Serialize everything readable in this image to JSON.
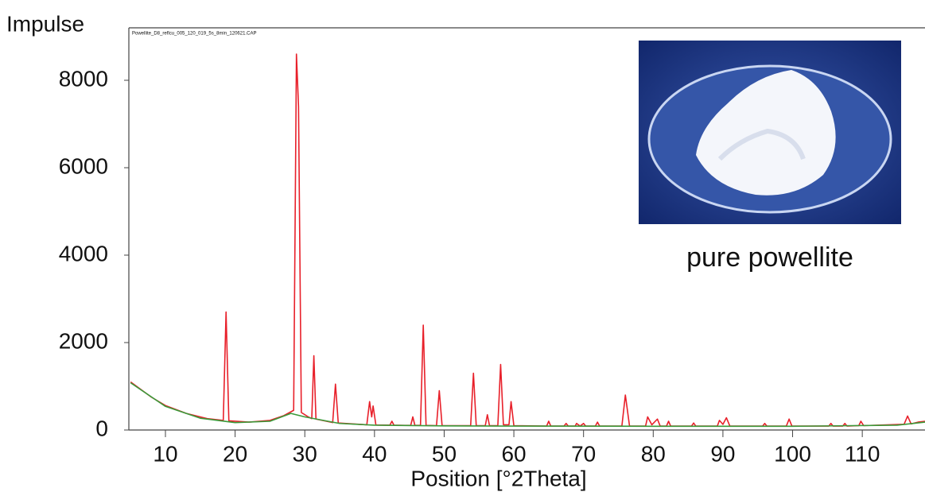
{
  "chart_data": {
    "type": "line",
    "file_label": "Powellite_D8_reflcu_005_120_019_5s_8min_120621.CAP",
    "y_label": "Impulse",
    "x_label": "Position [°2Theta]",
    "annotation": "pure powellite",
    "xlim": [
      4.75,
      119
    ],
    "ylim": [
      0,
      9200
    ],
    "xticks": [
      10,
      20,
      30,
      40,
      50,
      60,
      70,
      80,
      90,
      100,
      110
    ],
    "yticks": [
      0,
      2000,
      4000,
      6000,
      8000
    ],
    "series": [
      {
        "color": "#e8202a",
        "x": [
          5,
          8,
          10,
          13,
          16,
          18.3,
          18.7,
          19.1,
          22,
          25,
          27,
          28.4,
          28.8,
          29.1,
          29.5,
          30.5,
          31.0,
          31.3,
          31.6,
          34.0,
          34.4,
          34.8,
          38.9,
          39.3,
          39.6,
          39.8,
          40.2,
          42.2,
          42.5,
          42.8,
          45.2,
          45.5,
          45.8,
          46.6,
          47.0,
          47.4,
          48.9,
          49.3,
          49.7,
          53.8,
          54.2,
          54.6,
          55.9,
          56.2,
          56.5,
          57.7,
          58.1,
          58.5,
          59.3,
          59.6,
          60.0,
          64.7,
          65.0,
          65.3,
          67.2,
          67.5,
          67.8,
          68.8,
          69.0,
          69.5,
          70.0,
          70.3,
          71.7,
          72.0,
          72.3,
          75.5,
          76.0,
          76.6,
          78.9,
          79.2,
          79.8,
          80.6,
          81.0,
          81.9,
          82.2,
          82.5,
          85.5,
          85.8,
          86.1,
          89.2,
          89.5,
          90.0,
          90.5,
          91.0,
          95.7,
          96.0,
          96.3,
          99.1,
          99.5,
          99.9,
          105.2,
          105.5,
          105.8,
          107.2,
          107.5,
          107.8,
          109.5,
          109.8,
          110.2,
          116.0,
          116.5,
          117.0,
          118.0,
          119
        ],
        "values": [
          1100,
          750,
          560,
          380,
          260,
          220,
          2700,
          210,
          180,
          220,
          330,
          450,
          8600,
          7400,
          400,
          300,
          260,
          1700,
          250,
          170,
          1050,
          160,
          120,
          650,
          300,
          550,
          115,
          110,
          200,
          110,
          105,
          300,
          105,
          105,
          2400,
          105,
          100,
          900,
          100,
          100,
          1300,
          100,
          100,
          350,
          100,
          100,
          1500,
          120,
          120,
          650,
          100,
          90,
          200,
          90,
          90,
          150,
          90,
          90,
          150,
          90,
          150,
          90,
          90,
          180,
          90,
          90,
          800,
          90,
          90,
          300,
          120,
          250,
          90,
          90,
          200,
          90,
          90,
          160,
          90,
          90,
          220,
          130,
          280,
          90,
          90,
          150,
          90,
          90,
          250,
          90,
          90,
          150,
          90,
          90,
          150,
          90,
          100,
          200,
          100,
          130,
          320,
          140,
          180,
          200
        ]
      },
      {
        "color": "#3a9a3a",
        "x": [
          5,
          10,
          15,
          20,
          25,
          28,
          30,
          35,
          40,
          50,
          60,
          80,
          100,
          115,
          119
        ],
        "values": [
          1080,
          540,
          270,
          170,
          200,
          380,
          300,
          150,
          110,
          95,
          90,
          85,
          85,
          110,
          180
        ]
      }
    ]
  }
}
